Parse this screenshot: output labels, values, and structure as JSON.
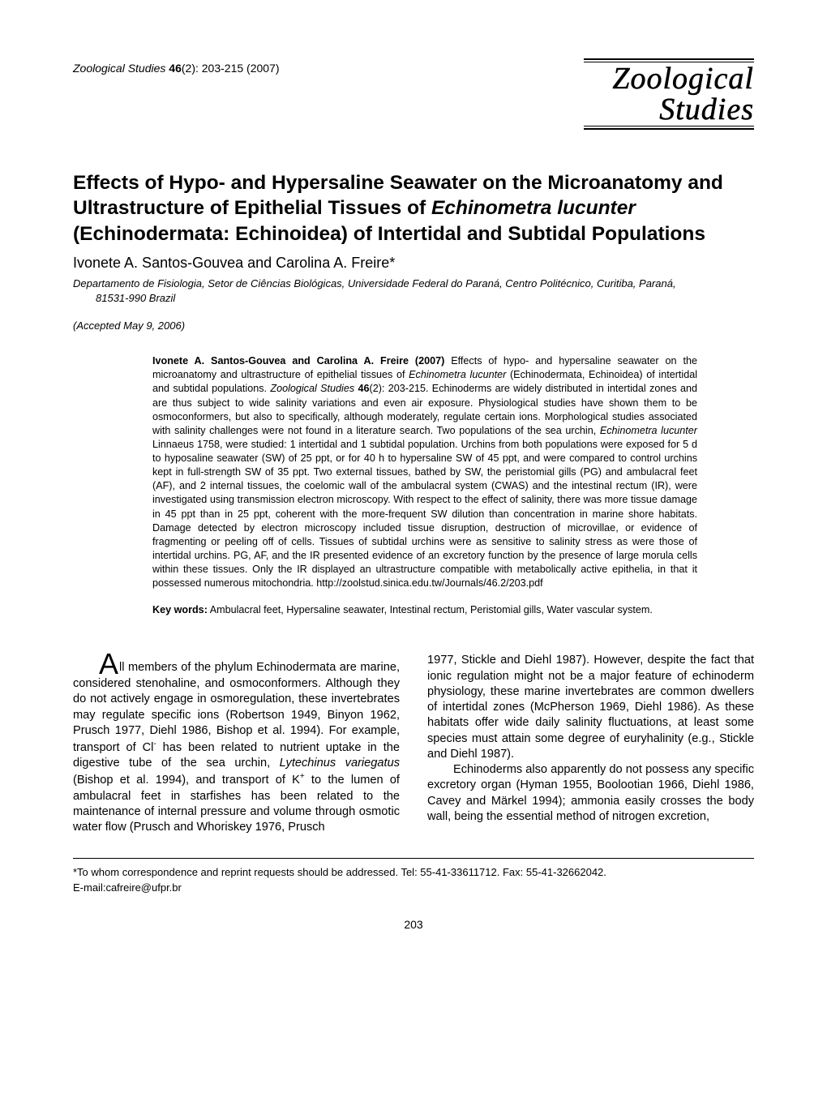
{
  "header": {
    "journal_citation_title": "Zoological Studies",
    "volume": "46",
    "issue_pages": "(2): 203-215 (2007)",
    "logo_top": "Zoological",
    "logo_bottom": "Studies"
  },
  "title": {
    "pre": "Effects of Hypo- and Hypersaline Seawater on the Microanatomy and Ultrastructure of Epithelial Tissues of ",
    "species": "Echinometra lucunter",
    "post": " (Echinodermata: Echinoidea) of Intertidal and Subtidal Populations"
  },
  "authors": "Ivonete A. Santos-Gouvea and Carolina A. Freire*",
  "affiliation_line1": "Departamento de Fisiologia, Setor de Ciências Biológicas, Universidade Federal do Paraná, Centro Politécnico, Curitiba, Paraná,",
  "affiliation_line2": "81531-990 Brazil",
  "accepted": "(Accepted May 9, 2006)",
  "abstract": {
    "head": "Ivonete A. Santos-Gouvea and Carolina A. Freire (2007)",
    "seg1": " Effects of hypo- and hypersaline seawater on the microanatomy and ultrastructure of epithelial tissues of ",
    "species1": "Echinometra lucunter",
    "seg2": " (Echinodermata, Echinoidea) of intertidal and subtidal populations.  ",
    "journal": "Zoological Studies",
    "vol": " 46",
    "seg3": "(2): 203-215.  Echinoderms are widely distributed in intertidal zones and are thus subject to wide salinity variations and even air exposure.  Physiological studies have shown them to be osmoconformers, but also to specifically, although moderately, regulate certain ions.  Morphological studies associated with salinity challenges were not found in a literature search.  Two populations of the sea urchin, ",
    "species2": "Echinometra lucunter",
    "seg4": " Linnaeus 1758, were studied: 1 intertidal and 1 subtidal population.  Urchins from both populations were exposed for 5 d to hyposaline seawater (SW) of 25 ppt, or for 40 h to hypersaline SW of 45 ppt, and were compared to control urchins kept in full-strength SW of 35 ppt.  Two external tissues, bathed by SW, the peristomial gills (PG) and ambulacral feet (AF), and 2 internal tissues, the coelomic wall of the ambulacral system (CWAS) and the intestinal rectum (IR), were investigated using transmission electron microscopy.  With respect to the effect of salinity, there was more tissue damage in 45 ppt than in 25 ppt, coherent with the more-frequent SW dilution than concentration in marine shore habitats.  Damage detected by electron microscopy included tissue disruption, destruction of microvillae, or evidence of fragmenting or peeling off of cells.  Tissues of subtidal urchins were as sensitive to salinity stress as were those of intertidal urchins.  PG, AF, and the IR presented evidence of an excretory function by the presence of large morula cells within these tissues.  Only the IR displayed an ultrastructure compatible with metabolically active epithelia, in that it possessed numerous mitochondria.  http://zoolstud.sinica.edu.tw/Journals/46.2/203.pdf"
  },
  "keywords": {
    "label": "Key words:",
    "text": " Ambulacral feet, Hypersaline seawater, Intestinal rectum, Peristomial gills, Water vascular system."
  },
  "body": {
    "left": {
      "dropcap": "A",
      "p1a": "ll members of the phylum Echinodermata are marine, considered stenohaline, and osmoconformers.  Although they do not actively engage in osmoregulation, these invertebrates may regulate specific ions (Robertson 1949, Binyon 1962, Prusch 1977, Diehl 1986, Bishop et al. 1994).  For example, transport of Cl",
      "p1_sup1": "-",
      "p1b": " has been related to nutrient uptake in the digestive tube of the sea urchin, ",
      "sp1": "Lytechinus variegatus",
      "p1c": " (Bishop et al. 1994), and transport of K",
      "p1_sup2": "+",
      "p1d": " to the lumen of ambulacral feet in starfishes has been related to the maintenance of internal pressure and volume through osmotic water flow (Prusch and Whoriskey 1976, Prusch"
    },
    "right": {
      "p1": "1977, Stickle and Diehl 1987).  However, despite the fact that ionic regulation might not be a major feature of echinoderm physiology, these marine invertebrates are common dwellers of intertidal zones (McPherson 1969, Diehl 1986).  As these habitats offer wide daily salinity fluctuations, at least some species must attain some degree of euryhalinity (e.g., Stickle and Diehl 1987).",
      "p2": "Echinoderms also apparently do not possess any specific excretory organ (Hyman 1955, Boolootian 1966, Diehl 1986, Cavey and Märkel 1994); ammonia easily crosses the body wall, being the essential method of nitrogen excretion,"
    }
  },
  "footer": {
    "line1": "*To whom correspondence and reprint requests should be addressed.  Tel: 55-41-33611712.  Fax: 55-41-32662042.",
    "line2": " E-mail:cafreire@ufpr.br"
  },
  "pagenum": "203"
}
